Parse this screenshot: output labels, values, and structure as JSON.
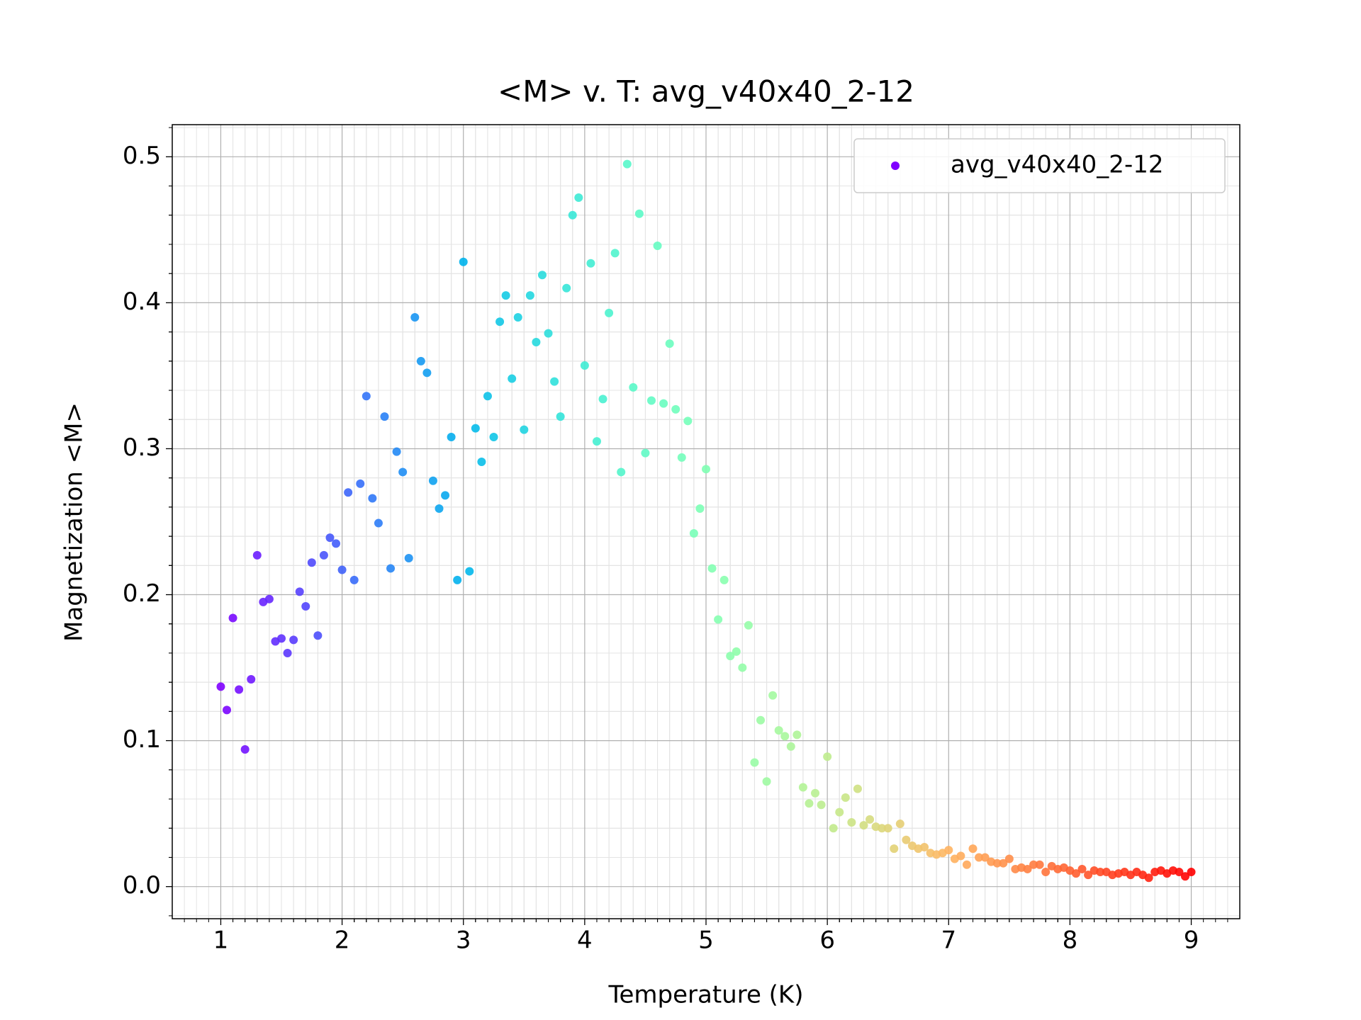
{
  "chart_data": {
    "type": "scatter",
    "title": "<M> v. T: avg_v40x40_2-12",
    "x_label": "Temperature (K)",
    "y_label": "Magnetization <M>",
    "x": [
      1,
      1.05,
      1.1,
      1.15,
      1.2,
      1.25,
      1.3,
      1.35,
      1.4,
      1.45,
      1.5,
      1.55,
      1.6,
      1.65,
      1.7,
      1.75,
      1.8,
      1.85,
      1.9,
      1.95,
      2,
      2.05,
      2.1,
      2.15,
      2.2,
      2.25,
      2.3,
      2.35,
      2.4,
      2.45,
      2.5,
      2.55,
      2.6,
      2.65,
      2.7,
      2.75,
      2.8,
      2.85,
      2.9,
      2.95,
      3,
      3.05,
      3.1,
      3.15,
      3.2,
      3.25,
      3.3,
      3.35,
      3.4,
      3.45,
      3.5,
      3.55,
      3.6,
      3.65,
      3.7,
      3.75,
      3.8,
      3.85,
      3.9,
      3.95,
      4,
      4.05,
      4.1,
      4.15,
      4.2,
      4.25,
      4.3,
      4.35,
      4.4,
      4.45,
      4.5,
      4.55,
      4.6,
      4.65,
      4.7,
      4.75,
      4.8,
      4.85,
      4.9,
      4.95,
      5,
      5.05,
      5.1,
      5.15,
      5.2,
      5.25,
      5.3,
      5.35,
      5.4,
      5.45,
      5.5,
      5.55,
      5.6,
      5.65,
      5.7,
      5.75,
      5.8,
      5.85,
      5.9,
      5.95,
      6,
      6.05,
      6.1,
      6.15,
      6.2,
      6.25,
      6.3,
      6.35,
      6.4,
      6.45,
      6.5,
      6.55,
      6.6,
      6.65,
      6.7,
      6.75,
      6.8,
      6.85,
      6.9,
      6.95,
      7,
      7.05,
      7.1,
      7.15,
      7.2,
      7.25,
      7.3,
      7.35,
      7.4,
      7.45,
      7.5,
      7.55,
      7.6,
      7.65,
      7.7,
      7.75,
      7.8,
      7.85,
      7.9,
      7.95,
      8,
      8.05,
      8.1,
      8.15,
      8.2,
      8.25,
      8.3,
      8.35,
      8.4,
      8.45,
      8.5,
      8.55,
      8.6,
      8.65,
      8.7,
      8.75,
      8.8,
      8.85,
      8.9,
      8.95,
      9
    ],
    "series": [
      {
        "name": "avg_v40x40_2-12",
        "values": [
          0.137,
          0.121,
          0.184,
          0.135,
          0.094,
          0.142,
          0.227,
          0.195,
          0.197,
          0.168,
          0.17,
          0.16,
          0.169,
          0.202,
          0.192,
          0.222,
          0.172,
          0.227,
          0.239,
          0.235,
          0.217,
          0.27,
          0.21,
          0.276,
          0.336,
          0.266,
          0.249,
          0.322,
          0.218,
          0.298,
          0.284,
          0.225,
          0.39,
          0.36,
          0.352,
          0.278,
          0.259,
          0.268,
          0.308,
          0.21,
          0.428,
          0.216,
          0.314,
          0.291,
          0.336,
          0.308,
          0.387,
          0.405,
          0.348,
          0.39,
          0.313,
          0.405,
          0.373,
          0.419,
          0.379,
          0.346,
          0.322,
          0.41,
          0.46,
          0.472,
          0.357,
          0.427,
          0.305,
          0.334,
          0.393,
          0.434,
          0.284,
          0.495,
          0.342,
          0.461,
          0.297,
          0.333,
          0.439,
          0.331,
          0.372,
          0.327,
          0.294,
          0.319,
          0.242,
          0.259,
          0.286,
          0.218,
          0.183,
          0.21,
          0.158,
          0.161,
          0.15,
          0.179,
          0.085,
          0.114,
          0.072,
          0.131,
          0.107,
          0.103,
          0.096,
          0.104,
          0.068,
          0.057,
          0.064,
          0.056,
          0.089,
          0.04,
          0.051,
          0.061,
          0.044,
          0.067,
          0.042,
          0.046,
          0.041,
          0.04,
          0.04,
          0.026,
          0.043,
          0.032,
          0.028,
          0.026,
          0.027,
          0.023,
          0.022,
          0.023,
          0.025,
          0.019,
          0.021,
          0.015,
          0.026,
          0.02,
          0.02,
          0.017,
          0.016,
          0.016,
          0.019,
          0.012,
          0.013,
          0.012,
          0.015,
          0.015,
          0.01,
          0.014,
          0.012,
          0.013,
          0.011,
          0.009,
          0.012,
          0.008,
          0.011,
          0.01,
          0.01,
          0.008,
          0.009,
          0.01,
          0.008,
          0.01,
          0.008,
          0.006,
          0.01,
          0.011,
          0.009,
          0.011,
          0.01,
          0.007,
          0.01
        ]
      }
    ],
    "colormap": "rainbow",
    "xlim": [
      0.6,
      9.4
    ],
    "ylim": [
      -0.022,
      0.522
    ],
    "xticks": [
      1,
      2,
      3,
      4,
      5,
      6,
      7,
      8,
      9
    ],
    "yticks": [
      {
        "value": 0,
        "label": "0.0"
      },
      0.1,
      0.2,
      0.3,
      0.4,
      0.5
    ],
    "grid": true,
    "minor_grid": true,
    "legend": "upper right"
  }
}
